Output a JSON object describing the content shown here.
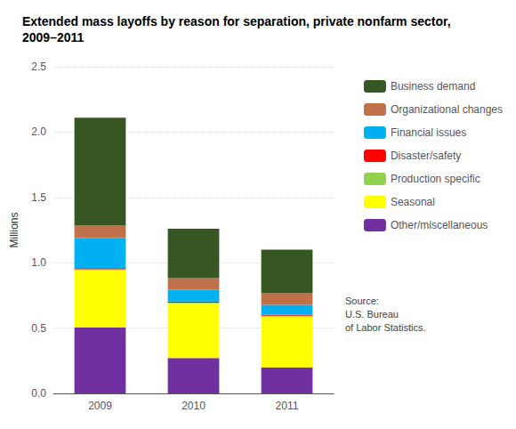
{
  "chart_data": {
    "type": "bar",
    "title": "Extended mass layoffs by reason for separation, private nonfarm sector, 2009–2011",
    "categories": [
      "2009",
      "2010",
      "2011"
    ],
    "series": [
      {
        "name": "Other/miscellaneous",
        "color": "#7030A0",
        "values": [
          0.505,
          0.27,
          0.2
        ]
      },
      {
        "name": "Seasonal",
        "color": "#FFFF00",
        "values": [
          0.44,
          0.42,
          0.39
        ]
      },
      {
        "name": "Production specific",
        "color": "#92D050",
        "values": [
          0.005,
          0.005,
          0.005
        ]
      },
      {
        "name": "Disaster/safety",
        "color": "#FF0000",
        "values": [
          0.008,
          0.008,
          0.007
        ]
      },
      {
        "name": "Financial issues",
        "color": "#00B0F0",
        "values": [
          0.23,
          0.09,
          0.075
        ]
      },
      {
        "name": "Organizational changes",
        "color": "#C0714A",
        "values": [
          0.1,
          0.09,
          0.09
        ]
      },
      {
        "name": "Business demand",
        "color": "#375623",
        "values": [
          0.822,
          0.377,
          0.333
        ]
      }
    ],
    "ylabel": "Millions",
    "ylim": [
      0,
      2.5
    ],
    "yticks": [
      {
        "value": 0,
        "label": "0.0"
      },
      0.5,
      {
        "value": 1,
        "label": "1.0"
      },
      1.5,
      {
        "value": 2,
        "label": "2.0"
      },
      2.5
    ],
    "grid": true,
    "stacked": true,
    "legend": "right",
    "annotation": "Source:\nU.S. Bureau\nof Labor Statistics."
  }
}
